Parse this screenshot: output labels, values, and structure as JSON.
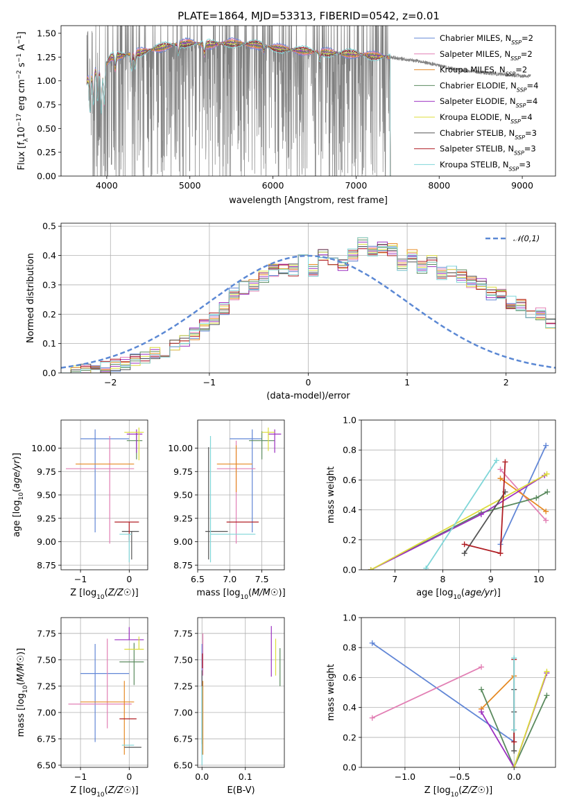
{
  "figure_title": "PLATE=1864, MJD=53313, FIBERID=0542, z=0.01",
  "models": [
    {
      "name": "Chabrier MILES",
      "nssp": "2",
      "color": "#6186d6"
    },
    {
      "name": "Salpeter MILES",
      "nssp": "2",
      "color": "#e27fb4"
    },
    {
      "name": "Kroupa MILES",
      "nssp": "2",
      "color": "#e68a24"
    },
    {
      "name": "Chabrier ELODIE",
      "nssp": "4",
      "color": "#5a8a5e"
    },
    {
      "name": "Salpeter ELODIE",
      "nssp": "4",
      "color": "#9b2fc0"
    },
    {
      "name": "Kroupa ELODIE",
      "nssp": "4",
      "color": "#dcdc3a"
    },
    {
      "name": "Chabrier STELIB",
      "nssp": "3",
      "color": "#555555"
    },
    {
      "name": "Salpeter STELIB",
      "nssp": "3",
      "color": "#b01e24"
    },
    {
      "name": "Kroupa STELIB",
      "nssp": "3",
      "color": "#7fd6d8"
    }
  ],
  "chart_data": [
    {
      "id": "spectrum",
      "type": "line",
      "xlabel": "wavelength [Angstrom, rest frame]",
      "ylabel_parts": [
        "Flux [f",
        "λ",
        "10",
        "−17",
        " erg cm",
        "−2",
        " s",
        "−1",
        " A",
        "−1",
        "]"
      ],
      "xlim": [
        3450,
        9400
      ],
      "ylim": [
        0,
        1.58
      ],
      "xticks": [
        4000,
        5000,
        6000,
        7000,
        8000,
        9000
      ],
      "yticks": [
        0.0,
        0.25,
        0.5,
        0.75,
        1.0,
        1.25,
        1.5
      ],
      "data_color": "#808080",
      "data_range": [
        3760,
        9100
      ],
      "model_range": [
        3760,
        7410
      ],
      "continuum": [
        [
          3760,
          1.0
        ],
        [
          3850,
          1.1
        ],
        [
          3950,
          1.12
        ],
        [
          4050,
          1.25
        ],
        [
          4300,
          1.28
        ],
        [
          4500,
          1.32
        ],
        [
          4800,
          1.38
        ],
        [
          5000,
          1.4
        ],
        [
          5200,
          1.38
        ],
        [
          5500,
          1.4
        ],
        [
          5800,
          1.38
        ],
        [
          6000,
          1.35
        ],
        [
          6300,
          1.32
        ],
        [
          6600,
          1.3
        ],
        [
          7000,
          1.28
        ],
        [
          7400,
          1.25
        ],
        [
          7800,
          1.2
        ],
        [
          8200,
          1.12
        ],
        [
          8600,
          1.08
        ],
        [
          9000,
          1.05
        ],
        [
          9100,
          1.05
        ]
      ],
      "absorption": [
        [
          3800,
          0.35
        ],
        [
          3840,
          0.3
        ],
        [
          3890,
          0.3
        ],
        [
          3934,
          0.45
        ],
        [
          3969,
          0.4
        ],
        [
          4102,
          0.12
        ],
        [
          4300,
          0.15
        ],
        [
          4340,
          0.12
        ],
        [
          4861,
          0.1
        ],
        [
          5175,
          0.1
        ],
        [
          5890,
          0.05
        ],
        [
          6563,
          0.08
        ]
      ],
      "legend_title": "",
      "legend_position": "upper right"
    },
    {
      "id": "residuals",
      "type": "step",
      "xlabel": "(data-model)/error",
      "ylabel": "Normed distribution",
      "xlim": [
        -2.5,
        2.5
      ],
      "ylim": [
        0,
        0.51
      ],
      "xticks": [
        -2,
        -1,
        0,
        1,
        2
      ],
      "yticks": [
        0.0,
        0.1,
        0.2,
        0.3,
        0.4,
        0.5
      ],
      "bin_width": 0.1,
      "bin_start": -2.5,
      "hist_base": [
        0.002,
        0.004,
        0.008,
        0.012,
        0.018,
        0.025,
        0.033,
        0.043,
        0.055,
        0.065,
        0.075,
        0.09,
        0.11,
        0.135,
        0.16,
        0.185,
        0.22,
        0.27,
        0.29,
        0.3,
        0.33,
        0.35,
        0.36,
        0.35,
        0.4,
        0.35,
        0.4,
        0.39,
        0.37,
        0.4,
        0.44,
        0.41,
        0.43,
        0.42,
        0.37,
        0.4,
        0.36,
        0.38,
        0.34,
        0.35,
        0.33,
        0.31,
        0.3,
        0.27,
        0.27,
        0.24,
        0.23,
        0.2,
        0.2,
        0.17,
        0.16,
        0.145,
        0.13,
        0.115,
        0.1,
        0.09,
        0.085,
        0.07,
        0.06,
        0.055,
        0.05,
        0.04,
        0.035,
        0.03,
        0.035,
        0.03,
        0.028,
        0.025,
        0.02,
        0.025,
        0.028,
        0.025,
        0.027,
        0.03,
        0.028
      ],
      "reference": {
        "label": "𝒩(0,1)",
        "color": "#5b88d4",
        "mean": 0,
        "sigma": 1
      },
      "legend_position": "upper right"
    },
    {
      "id": "age-vs-Z",
      "type": "errorbar",
      "xlabel": "Z [log10(Z/Z☉)]",
      "ylabel": "age  [log10(age/yr)]",
      "xlim": [
        -1.4,
        0.38
      ],
      "ylim": [
        8.7,
        10.3
      ],
      "xticks": [
        -1,
        0
      ],
      "yticks": [
        8.75,
        9.0,
        9.25,
        9.5,
        9.75,
        10.0
      ],
      "points": [
        {
          "m": 0,
          "x": -0.7,
          "y": 10.1,
          "xerr": [
            0.3,
            0.7
          ],
          "yerr": [
            1.0,
            0.1
          ]
        },
        {
          "m": 1,
          "x": -0.4,
          "y": 9.78,
          "xerr": [
            0.9,
            0.5
          ],
          "yerr": [
            0.8,
            0.35
          ]
        },
        {
          "m": 2,
          "x": -0.3,
          "y": 9.83,
          "xerr": [
            0.8,
            0.4
          ],
          "yerr": [
            0.0,
            0.0
          ]
        },
        {
          "m": 3,
          "x": 0.15,
          "y": 10.08,
          "xerr": [
            0.2,
            0.12
          ],
          "yerr": [
            0.2,
            0.1
          ]
        },
        {
          "m": 4,
          "x": 0.15,
          "y": 10.15,
          "xerr": [
            0.2,
            0.12
          ],
          "yerr": [
            0.2,
            0.05
          ]
        },
        {
          "m": 5,
          "x": 0.2,
          "y": 10.17,
          "xerr": [
            0.3,
            0.1
          ],
          "yerr": [
            0.3,
            0.05
          ]
        },
        {
          "m": 6,
          "x": 0.05,
          "y": 9.11,
          "xerr": [
            0.2,
            0.15
          ],
          "yerr": [
            0.3,
            0.0
          ]
        },
        {
          "m": 7,
          "x": 0.0,
          "y": 9.21,
          "xerr": [
            0.3,
            0.2
          ],
          "yerr": [
            0.2,
            0.0
          ]
        },
        {
          "m": 8,
          "x": 0.0,
          "y": 9.08,
          "xerr": [
            0.2,
            0.05
          ],
          "yerr": [
            0.3,
            0.0
          ]
        }
      ]
    },
    {
      "id": "age-vs-mass",
      "type": "errorbar",
      "xlabel": "mass [log10(M/M☉)]",
      "ylabel": "",
      "xlim": [
        6.5,
        7.85
      ],
      "ylim": [
        8.7,
        10.3
      ],
      "xticks": [
        6.5,
        7.0,
        7.5
      ],
      "yticks": [
        8.75,
        9.0,
        9.25,
        9.5,
        9.75,
        10.0
      ],
      "points": [
        {
          "m": 0,
          "x": 7.35,
          "y": 10.1,
          "xerr": [
            0.35,
            0.15
          ],
          "yerr": [
            1.0,
            0.1
          ]
        },
        {
          "m": 1,
          "x": 7.1,
          "y": 9.78,
          "xerr": [
            0.3,
            0.3
          ],
          "yerr": [
            0.8,
            0.3
          ]
        },
        {
          "m": 2,
          "x": 7.1,
          "y": 9.83,
          "xerr": [
            0.3,
            0.25
          ],
          "yerr": [
            0.3,
            0.2
          ]
        },
        {
          "m": 3,
          "x": 7.5,
          "y": 10.08,
          "xerr": [
            0.2,
            0.2
          ],
          "yerr": [
            0.2,
            0.1
          ]
        },
        {
          "m": 4,
          "x": 7.7,
          "y": 10.15,
          "xerr": [
            0.1,
            0.1
          ],
          "yerr": [
            0.2,
            0.05
          ]
        },
        {
          "m": 5,
          "x": 7.6,
          "y": 10.17,
          "xerr": [
            0.1,
            0.1
          ],
          "yerr": [
            0.2,
            0.05
          ]
        },
        {
          "m": 6,
          "x": 6.67,
          "y": 9.11,
          "xerr": [
            0.05,
            0.3
          ],
          "yerr": [
            0.3,
            0.9
          ]
        },
        {
          "m": 7,
          "x": 6.95,
          "y": 9.21,
          "xerr": [
            0.0,
            0.5
          ],
          "yerr": [
            0.0,
            0.0
          ]
        },
        {
          "m": 8,
          "x": 6.7,
          "y": 9.08,
          "xerr": [
            0.0,
            0.7
          ],
          "yerr": [
            0.3,
            1.05
          ]
        }
      ]
    },
    {
      "id": "weight-vs-age",
      "type": "line",
      "xlabel": "age  [log10(age/yr)]",
      "ylabel": "mass weight",
      "xlim": [
        6.3,
        10.35
      ],
      "ylim": [
        0,
        1.0
      ],
      "xticks": [
        7,
        8,
        9,
        10
      ],
      "yticks": [
        0.0,
        0.2,
        0.4,
        0.6,
        0.8,
        1.0
      ],
      "series": [
        {
          "m": 0,
          "x": [
            9.2,
            10.15
          ],
          "y": [
            0.17,
            0.83
          ]
        },
        {
          "m": 1,
          "x": [
            9.2,
            10.15
          ],
          "y": [
            0.67,
            0.33
          ]
        },
        {
          "m": 2,
          "x": [
            9.2,
            10.15
          ],
          "y": [
            0.61,
            0.39
          ]
        },
        {
          "m": 3,
          "x": [
            6.5,
            8.8,
            9.95,
            10.18
          ],
          "y": [
            0.0,
            0.38,
            0.48,
            0.52
          ]
        },
        {
          "m": 4,
          "x": [
            6.5,
            8.8,
            10.12
          ],
          "y": [
            0.0,
            0.37,
            0.63
          ]
        },
        {
          "m": 5,
          "x": [
            6.5,
            10.17
          ],
          "y": [
            0.0,
            0.64
          ]
        },
        {
          "m": 6,
          "x": [
            8.45,
            9.3
          ],
          "y": [
            0.11,
            0.52
          ]
        },
        {
          "m": 7,
          "x": [
            8.45,
            9.2,
            9.3
          ],
          "y": [
            0.17,
            0.11,
            0.72
          ]
        },
        {
          "m": 8,
          "x": [
            7.65,
            9.12
          ],
          "y": [
            0.01,
            0.73
          ]
        }
      ]
    },
    {
      "id": "mass-vs-Z",
      "type": "errorbar",
      "xlabel": "Z [log10(Z/Z☉)]",
      "ylabel": "mass [log10(M/M☉)]",
      "xlim": [
        -1.4,
        0.38
      ],
      "ylim": [
        6.48,
        7.9
      ],
      "xticks": [
        -1,
        0
      ],
      "yticks": [
        6.5,
        6.75,
        7.0,
        7.25,
        7.5,
        7.75
      ],
      "points": [
        {
          "m": 0,
          "x": -0.7,
          "y": 7.37,
          "xerr": [
            0.3,
            0.7
          ],
          "yerr": [
            0.65,
            0.28
          ]
        },
        {
          "m": 1,
          "x": -0.45,
          "y": 7.08,
          "xerr": [
            0.8,
            0.5
          ],
          "yerr": [
            0.23,
            0.62
          ]
        },
        {
          "m": 2,
          "x": -0.1,
          "y": 7.1,
          "xerr": [
            0.9,
            0.2
          ],
          "yerr": [
            0.5,
            0.2
          ]
        },
        {
          "m": 3,
          "x": 0.1,
          "y": 7.48,
          "xerr": [
            0.3,
            0.2
          ],
          "yerr": [
            0.22,
            0.18
          ]
        },
        {
          "m": 4,
          "x": 0.0,
          "y": 7.69,
          "xerr": [
            0.3,
            0.3
          ],
          "yerr": [
            0.0,
            0.12
          ]
        },
        {
          "m": 5,
          "x": 0.2,
          "y": 7.6,
          "xerr": [
            0.3,
            0.1
          ],
          "yerr": [
            0.0,
            0.12
          ]
        },
        {
          "m": 6,
          "x": 0.05,
          "y": 6.67,
          "xerr": [
            0.15,
            0.2
          ],
          "yerr": [
            0.0,
            0.0
          ]
        },
        {
          "m": 7,
          "x": -0.05,
          "y": 6.94,
          "xerr": [
            0.15,
            0.2
          ],
          "yerr": [
            0.0,
            0.0
          ]
        },
        {
          "m": 8,
          "x": 0.0,
          "y": 6.69,
          "xerr": [
            0.15,
            0.1
          ],
          "yerr": [
            0.0,
            0.0
          ]
        }
      ]
    },
    {
      "id": "mass-vs-EBV",
      "type": "errorbar",
      "xlabel": "E(B-V)",
      "ylabel": "",
      "xlim": [
        -0.01,
        0.19
      ],
      "ylim": [
        6.48,
        7.9
      ],
      "xticks": [
        0.0,
        0.1
      ],
      "yticks": [
        6.5,
        6.75,
        7.0,
        7.25,
        7.5,
        7.75
      ],
      "points": [
        {
          "m": 0,
          "x": 0.0,
          "y": 7.2,
          "xerr": [
            0.0,
            0.0
          ],
          "yerr": [
            0.6,
            0.45
          ]
        },
        {
          "m": 1,
          "x": 0.002,
          "y": 7.45,
          "xerr": [
            0.0,
            0.0
          ],
          "yerr": [
            0.1,
            0.3
          ]
        },
        {
          "m": 2,
          "x": 0.002,
          "y": 7.1,
          "xerr": [
            0.0,
            0.0
          ],
          "yerr": [
            0.5,
            0.2
          ]
        },
        {
          "m": 3,
          "x": 0.18,
          "y": 7.43,
          "xerr": [
            0.0,
            0.0
          ],
          "yerr": [
            0.18,
            0.18
          ]
        },
        {
          "m": 4,
          "x": 0.16,
          "y": 7.57,
          "xerr": [
            0.0,
            0.0
          ],
          "yerr": [
            0.23,
            0.25
          ]
        },
        {
          "m": 5,
          "x": 0.17,
          "y": 7.5,
          "xerr": [
            0.0,
            0.0
          ],
          "yerr": [
            0.15,
            0.2
          ]
        },
        {
          "m": 6,
          "x": 0.0,
          "y": 7.1,
          "xerr": [
            0.0,
            0.0
          ],
          "yerr": [
            0.4,
            0.3
          ]
        },
        {
          "m": 7,
          "x": 0.001,
          "y": 7.49,
          "xerr": [
            0.0,
            0.0
          ],
          "yerr": [
            0.07,
            0.07
          ]
        },
        {
          "m": 8,
          "x": 0.0,
          "y": 6.9,
          "xerr": [
            0.0,
            0.0
          ],
          "yerr": [
            0.4,
            0.35
          ]
        }
      ]
    },
    {
      "id": "weight-vs-Z",
      "type": "line",
      "xlabel": "Z [log10(Z/Z☉)]",
      "ylabel": "mass weight",
      "xlim": [
        -1.4,
        0.38
      ],
      "ylim": [
        0,
        1.0
      ],
      "xticks": [
        -1.0,
        -0.5,
        0.0
      ],
      "yticks": [
        0.0,
        0.2,
        0.4,
        0.6,
        0.8,
        1.0
      ],
      "series": [
        {
          "m": 0,
          "x": [
            -1.3,
            0.0
          ],
          "y": [
            0.83,
            0.17
          ]
        },
        {
          "m": 1,
          "x": [
            -1.3,
            -0.3
          ],
          "y": [
            0.33,
            0.67
          ]
        },
        {
          "m": 2,
          "x": [
            -0.3,
            0.0
          ],
          "y": [
            0.39,
            0.61
          ]
        },
        {
          "m": 3,
          "x": [
            -0.3,
            0.0,
            0.3
          ],
          "y": [
            0.52,
            0.0,
            0.48
          ]
        },
        {
          "m": 4,
          "x": [
            -0.3,
            0.0,
            0.3
          ],
          "y": [
            0.37,
            0.0,
            0.63
          ]
        },
        {
          "m": 5,
          "x": [
            0.0,
            0.3
          ],
          "y": [
            0.0,
            0.64
          ]
        },
        {
          "m": 6,
          "x": [
            0.0,
            0.0,
            0.0
          ],
          "y": [
            0.11,
            0.37,
            0.52
          ]
        },
        {
          "m": 7,
          "x": [
            0.0,
            0.0
          ],
          "y": [
            0.17,
            0.72
          ]
        },
        {
          "m": 8,
          "x": [
            0.0,
            0.0
          ],
          "y": [
            0.25,
            0.73
          ]
        }
      ]
    }
  ]
}
